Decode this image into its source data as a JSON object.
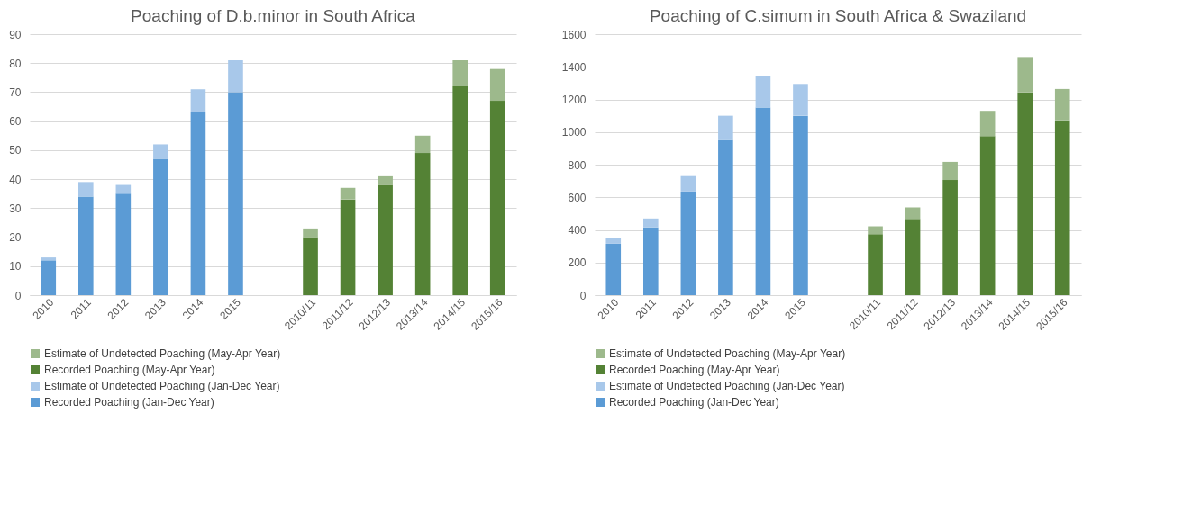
{
  "chart_data": [
    {
      "type": "bar",
      "title": "Poaching of D.b.minor in South Africa",
      "stacked": true,
      "grid": "y",
      "legend": "bottom",
      "categories": [
        "2010",
        "2011",
        "2012",
        "2013",
        "2014",
        "2015",
        null,
        "2010/11",
        "2011/12",
        "2012/13",
        "2013/14",
        "2014/15",
        "2015/16"
      ],
      "ylim": [
        0,
        90
      ],
      "yticks": [
        0,
        10,
        20,
        30,
        40,
        50,
        60,
        70,
        80,
        90
      ],
      "series": [
        {
          "name": "Recorded Poaching (Jan-Dec Year)",
          "color": "#5b9bd5",
          "values": [
            12,
            34,
            35,
            47,
            63,
            70,
            null,
            null,
            null,
            null,
            null,
            null,
            null
          ]
        },
        {
          "name": "Estimate of Undetected Poaching (Jan-Dec Year)",
          "color": "#a8c8ea",
          "values": [
            1,
            5,
            3,
            5,
            8,
            11,
            null,
            null,
            null,
            null,
            null,
            null,
            null
          ]
        },
        {
          "name": "Recorded Poaching (May-Apr Year)",
          "color": "#548235",
          "values": [
            null,
            null,
            null,
            null,
            null,
            null,
            null,
            20,
            33,
            38,
            49,
            72,
            67
          ]
        },
        {
          "name": "Estimate of Undetected Poaching (May-Apr Year)",
          "color": "#9db98c",
          "values": [
            null,
            null,
            null,
            null,
            null,
            null,
            null,
            3,
            4,
            3,
            6,
            9,
            11
          ]
        }
      ]
    },
    {
      "type": "bar",
      "title": "Poaching of C.simum in South Africa & Swaziland",
      "stacked": true,
      "grid": "y",
      "legend": "bottom",
      "categories": [
        "2010",
        "2011",
        "2012",
        "2013",
        "2014",
        "2015",
        null,
        "2010/11",
        "2011/12",
        "2012/13",
        "2013/14",
        "2014/15",
        "2015/16"
      ],
      "ylim": [
        0,
        1600
      ],
      "yticks": [
        0,
        200,
        400,
        600,
        800,
        1000,
        1200,
        1400,
        1600
      ],
      "series": [
        {
          "name": "Recorded Poaching (Jan-Dec Year)",
          "color": "#5b9bd5",
          "values": [
            315,
            415,
            635,
            950,
            1150,
            1100,
            null,
            null,
            null,
            null,
            null,
            null,
            null
          ]
        },
        {
          "name": "Estimate of Undetected Poaching (Jan-Dec Year)",
          "color": "#a8c8ea",
          "values": [
            35,
            55,
            95,
            150,
            195,
            195,
            null,
            null,
            null,
            null,
            null,
            null,
            null
          ]
        },
        {
          "name": "Recorded Poaching (May-Apr Year)",
          "color": "#548235",
          "values": [
            null,
            null,
            null,
            null,
            null,
            null,
            null,
            374,
            467,
            706,
            975,
            1243,
            1072
          ]
        },
        {
          "name": "Estimate of Undetected Poaching (May-Apr Year)",
          "color": "#9db98c",
          "values": [
            null,
            null,
            null,
            null,
            null,
            null,
            null,
            48,
            71,
            111,
            155,
            217,
            192
          ]
        }
      ]
    }
  ]
}
